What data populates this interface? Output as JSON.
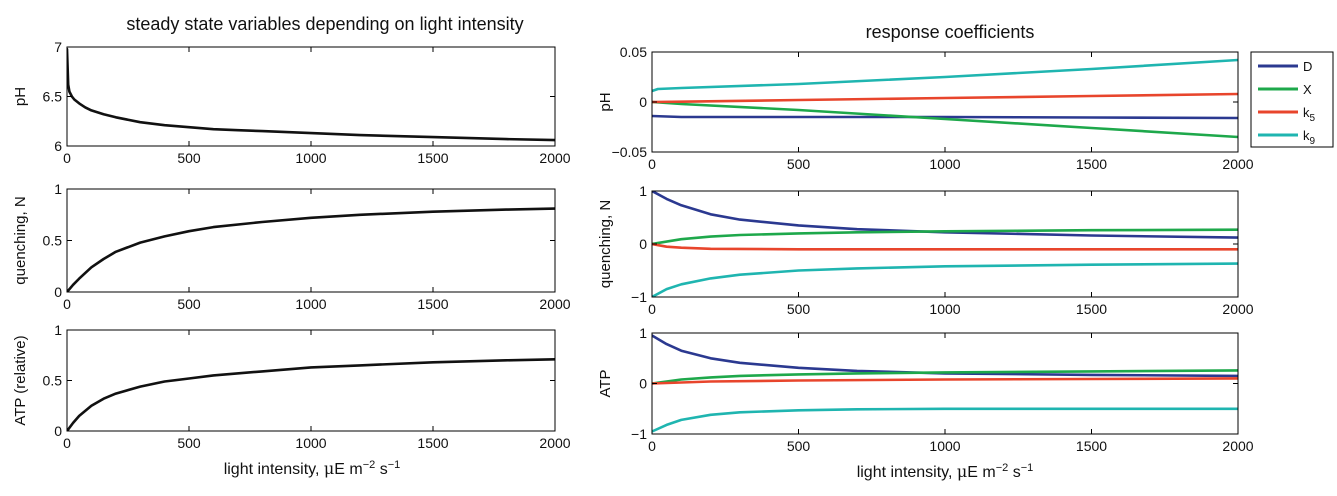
{
  "left_title": "steady state variables depending on light intensity",
  "right_title": "response coefficients",
  "xlabel_left": {
    "main": "light intensity, ",
    "mu": "μ",
    "unit": "E m",
    "exp1": "−2",
    "s": " s",
    "exp2": "−1"
  },
  "xlabel_right": {
    "main": "light intensity, ",
    "mu": "μ",
    "unit": "E m",
    "exp1": "−2",
    "s": " s",
    "exp2": "−1"
  },
  "legend": [
    {
      "label": "D",
      "sub": "",
      "color": "#2b3990"
    },
    {
      "label": "X",
      "sub": "",
      "color": "#1ea84b"
    },
    {
      "label": "k",
      "sub": "5",
      "color": "#e8452c"
    },
    {
      "label": "k",
      "sub": "9",
      "color": "#1fb5b0"
    }
  ],
  "chart_data": [
    {
      "type": "line",
      "panel": "left-1",
      "ylabel": "pH",
      "xlim": [
        0,
        2000
      ],
      "ylim": [
        6,
        7
      ],
      "xticks": [
        "0",
        "500",
        "1000",
        "1500",
        "2000"
      ],
      "yticks": [
        "6",
        "6.5",
        "7"
      ],
      "series": [
        {
          "color": "#111111",
          "x": [
            0,
            5,
            10,
            20,
            30,
            50,
            75,
            100,
            150,
            200,
            300,
            400,
            500,
            600,
            700,
            800,
            1000,
            1200,
            1500,
            1800,
            2000
          ],
          "y": [
            6.98,
            6.62,
            6.55,
            6.5,
            6.47,
            6.43,
            6.39,
            6.36,
            6.32,
            6.29,
            6.24,
            6.21,
            6.19,
            6.17,
            6.16,
            6.15,
            6.13,
            6.11,
            6.09,
            6.07,
            6.06
          ]
        }
      ]
    },
    {
      "type": "line",
      "panel": "left-2",
      "ylabel": "quenching, N",
      "xlim": [
        0,
        2000
      ],
      "ylim": [
        0,
        1
      ],
      "xticks": [
        "0",
        "500",
        "1000",
        "1500",
        "2000"
      ],
      "yticks": [
        "0",
        "0.5",
        "1"
      ],
      "series": [
        {
          "color": "#111111",
          "x": [
            0,
            25,
            50,
            100,
            150,
            200,
            300,
            400,
            500,
            600,
            800,
            1000,
            1200,
            1500,
            1800,
            2000
          ],
          "y": [
            0,
            0.07,
            0.13,
            0.24,
            0.32,
            0.39,
            0.48,
            0.54,
            0.59,
            0.63,
            0.68,
            0.72,
            0.75,
            0.78,
            0.8,
            0.81
          ]
        }
      ]
    },
    {
      "type": "line",
      "panel": "left-3",
      "ylabel": "ATP (relative)",
      "xlim": [
        0,
        2000
      ],
      "ylim": [
        0,
        1
      ],
      "xticks": [
        "0",
        "500",
        "1000",
        "1500",
        "2000"
      ],
      "yticks": [
        "0",
        "0.5",
        "1"
      ],
      "series": [
        {
          "color": "#111111",
          "x": [
            0,
            25,
            50,
            100,
            150,
            200,
            300,
            400,
            500,
            600,
            800,
            1000,
            1200,
            1500,
            1800,
            2000
          ],
          "y": [
            0,
            0.08,
            0.15,
            0.25,
            0.32,
            0.37,
            0.44,
            0.49,
            0.52,
            0.55,
            0.59,
            0.63,
            0.65,
            0.68,
            0.7,
            0.71
          ]
        }
      ]
    },
    {
      "type": "line",
      "panel": "right-1",
      "ylabel": "pH",
      "xlim": [
        0,
        2000
      ],
      "ylim": [
        -0.05,
        0.05
      ],
      "xticks": [
        "0",
        "500",
        "1000",
        "1500",
        "2000"
      ],
      "yticks": [
        "−0.05",
        "0",
        "0.05"
      ],
      "series": [
        {
          "name": "D",
          "color": "#2b3990",
          "x": [
            0,
            100,
            500,
            1000,
            1500,
            2000
          ],
          "y": [
            -0.014,
            -0.015,
            -0.015,
            -0.015,
            -0.0155,
            -0.016
          ]
        },
        {
          "name": "X",
          "color": "#1ea84b",
          "x": [
            0,
            100,
            500,
            1000,
            1500,
            2000
          ],
          "y": [
            0,
            -0.002,
            -0.008,
            -0.017,
            -0.026,
            -0.035
          ]
        },
        {
          "name": "k5",
          "color": "#e8452c",
          "x": [
            0,
            100,
            500,
            1000,
            1500,
            2000
          ],
          "y": [
            0,
            0.0003,
            0.002,
            0.004,
            0.006,
            0.008
          ]
        },
        {
          "name": "k9",
          "color": "#1fb5b0",
          "x": [
            0,
            20,
            100,
            500,
            1000,
            1500,
            2000
          ],
          "y": [
            0.011,
            0.013,
            0.014,
            0.018,
            0.025,
            0.033,
            0.042
          ]
        }
      ]
    },
    {
      "type": "line",
      "panel": "right-2",
      "ylabel": "quenching, N",
      "xlim": [
        0,
        2000
      ],
      "ylim": [
        -1,
        1
      ],
      "xticks": [
        "0",
        "500",
        "1000",
        "1500",
        "2000"
      ],
      "yticks": [
        "−1",
        "0",
        "1"
      ],
      "series": [
        {
          "name": "D",
          "color": "#2b3990",
          "x": [
            0,
            50,
            100,
            200,
            300,
            500,
            700,
            1000,
            1500,
            2000
          ],
          "y": [
            1,
            0.85,
            0.73,
            0.56,
            0.46,
            0.35,
            0.28,
            0.22,
            0.16,
            0.12
          ]
        },
        {
          "name": "X",
          "color": "#1ea84b",
          "x": [
            0,
            100,
            200,
            300,
            500,
            700,
            1000,
            1500,
            2000
          ],
          "y": [
            0,
            0.09,
            0.14,
            0.17,
            0.2,
            0.22,
            0.24,
            0.26,
            0.27
          ]
        },
        {
          "name": "k5",
          "color": "#e8452c",
          "x": [
            0,
            50,
            100,
            200,
            500,
            1000,
            1500,
            2000
          ],
          "y": [
            0,
            -0.05,
            -0.07,
            -0.09,
            -0.1,
            -0.1,
            -0.1,
            -0.1
          ]
        },
        {
          "name": "k9",
          "color": "#1fb5b0",
          "x": [
            0,
            50,
            100,
            200,
            300,
            500,
            700,
            1000,
            1500,
            2000
          ],
          "y": [
            -1,
            -0.85,
            -0.76,
            -0.65,
            -0.58,
            -0.5,
            -0.46,
            -0.42,
            -0.39,
            -0.37
          ]
        }
      ]
    },
    {
      "type": "line",
      "panel": "right-3",
      "ylabel": "ATP",
      "xlim": [
        0,
        2000
      ],
      "ylim": [
        -1,
        1
      ],
      "xticks": [
        "0",
        "500",
        "1000",
        "1500",
        "2000"
      ],
      "yticks": [
        "−1",
        "0",
        "1"
      ],
      "series": [
        {
          "name": "D",
          "color": "#2b3990",
          "x": [
            0,
            50,
            100,
            200,
            300,
            500,
            700,
            1000,
            1500,
            2000
          ],
          "y": [
            0.95,
            0.78,
            0.65,
            0.5,
            0.41,
            0.31,
            0.25,
            0.2,
            0.17,
            0.15
          ]
        },
        {
          "name": "X",
          "color": "#1ea84b",
          "x": [
            0,
            100,
            200,
            300,
            500,
            700,
            1000,
            1500,
            2000
          ],
          "y": [
            0,
            0.08,
            0.12,
            0.15,
            0.18,
            0.2,
            0.22,
            0.24,
            0.26
          ]
        },
        {
          "name": "k5",
          "color": "#e8452c",
          "x": [
            0,
            100,
            200,
            500,
            1000,
            1500,
            2000
          ],
          "y": [
            0,
            0.02,
            0.04,
            0.06,
            0.08,
            0.09,
            0.1
          ]
        },
        {
          "name": "k9",
          "color": "#1fb5b0",
          "x": [
            0,
            50,
            100,
            200,
            300,
            500,
            700,
            1000,
            1500,
            2000
          ],
          "y": [
            -0.95,
            -0.82,
            -0.72,
            -0.62,
            -0.57,
            -0.53,
            -0.51,
            -0.5,
            -0.5,
            -0.5
          ]
        }
      ]
    }
  ]
}
